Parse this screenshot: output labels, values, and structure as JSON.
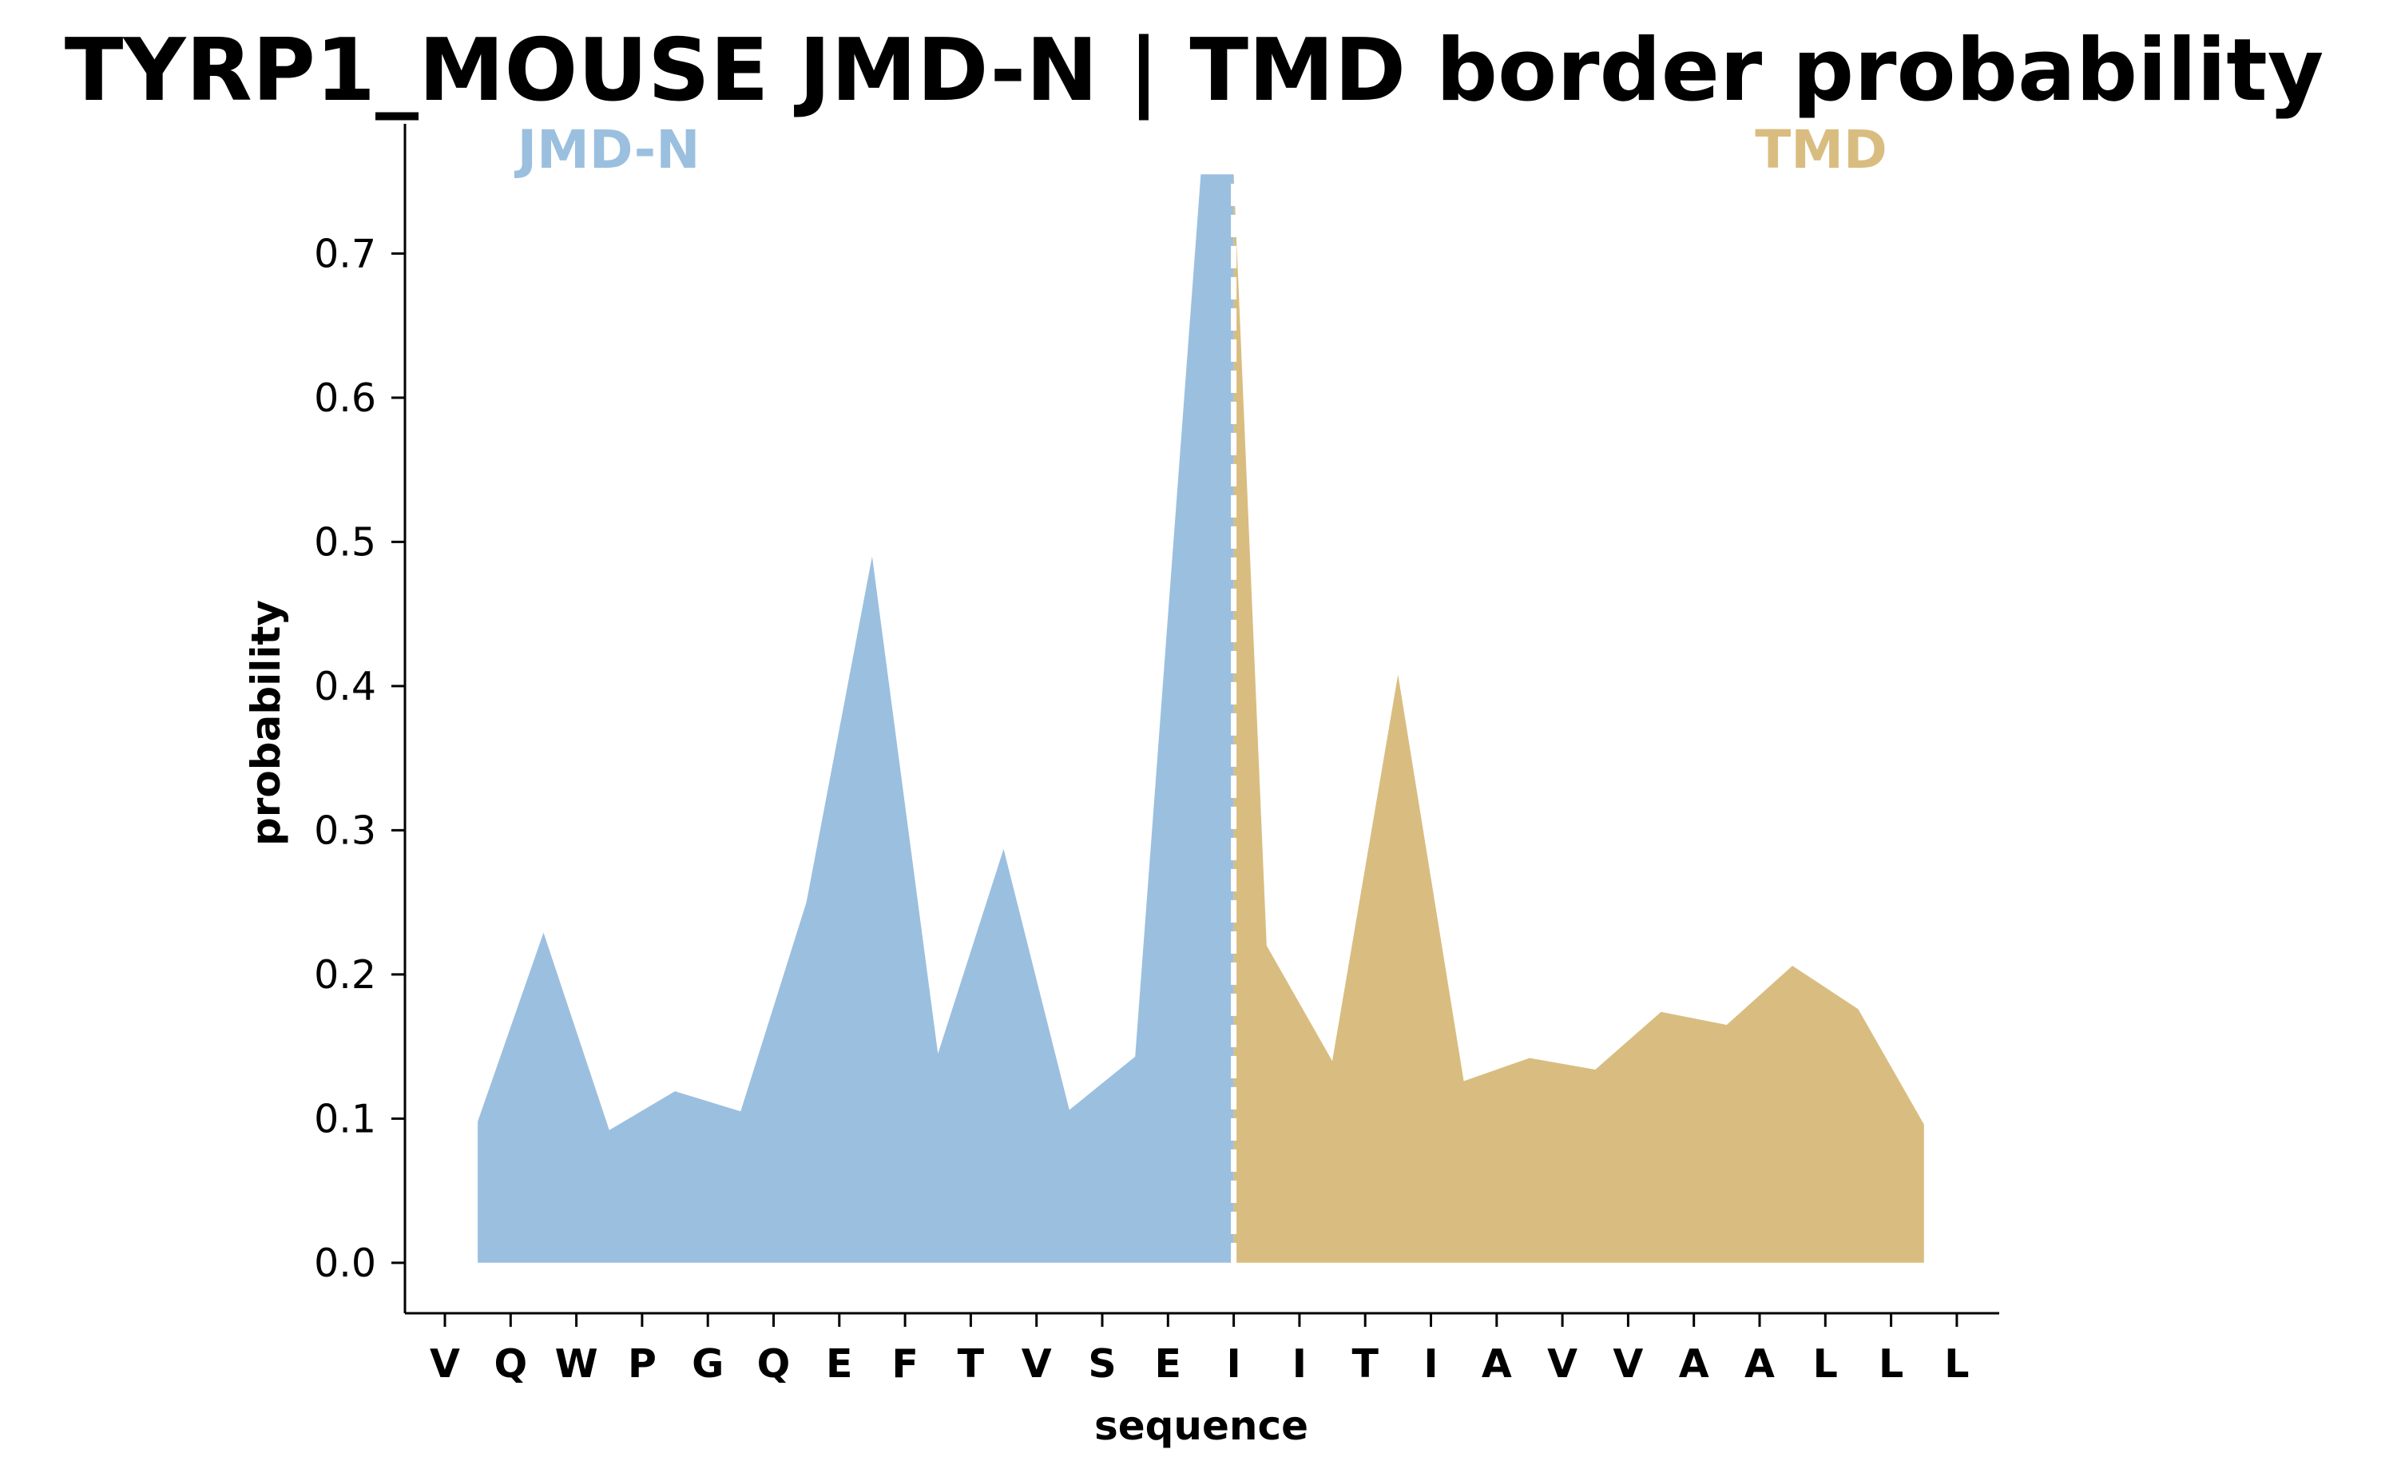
{
  "chart_data": {
    "type": "area",
    "title": "TYRP1_MOUSE JMD-N | TMD border probability",
    "xlabel": "sequence",
    "ylabel": "probability",
    "ylim": [
      -0.035,
      0.79
    ],
    "yticks": [
      "0.0",
      "0.1",
      "0.2",
      "0.3",
      "0.4",
      "0.5",
      "0.6",
      "0.7"
    ],
    "categories": [
      "V",
      "Q",
      "W",
      "P",
      "G",
      "Q",
      "E",
      "F",
      "T",
      "V",
      "S",
      "E",
      "I",
      "I",
      "T",
      "I",
      "A",
      "V",
      "V",
      "A",
      "A",
      "L",
      "L",
      "L"
    ],
    "grid": false,
    "series": [
      {
        "name": "JMD-N",
        "color": "#9bbfdf",
        "x": [
          0.5,
          1.5,
          2.5,
          3.5,
          4.5,
          5.5,
          6.5,
          7.5,
          8.5,
          9.5,
          10.5,
          11.5,
          12.0
        ],
        "values": [
          0.098,
          0.229,
          0.092,
          0.119,
          0.105,
          0.25,
          0.49,
          0.145,
          0.287,
          0.106,
          0.143,
          0.755,
          0.755
        ]
      },
      {
        "name": "TMD",
        "color": "#d9bd80",
        "x": [
          12.0,
          12.5,
          13.5,
          14.5,
          15.5,
          16.5,
          17.5,
          18.5,
          19.5,
          20.5,
          21.5,
          22.5
        ],
        "values": [
          0.755,
          0.22,
          0.14,
          0.408,
          0.126,
          0.142,
          0.134,
          0.174,
          0.165,
          0.206,
          0.176,
          0.096
        ]
      }
    ],
    "border_line": {
      "x": 12.0,
      "color": "#ffffff",
      "style": "dashed"
    },
    "region_labels": [
      {
        "text": "JMD-N",
        "color": "#9bbfdf"
      },
      {
        "text": "TMD",
        "color": "#d9bd80"
      }
    ]
  }
}
